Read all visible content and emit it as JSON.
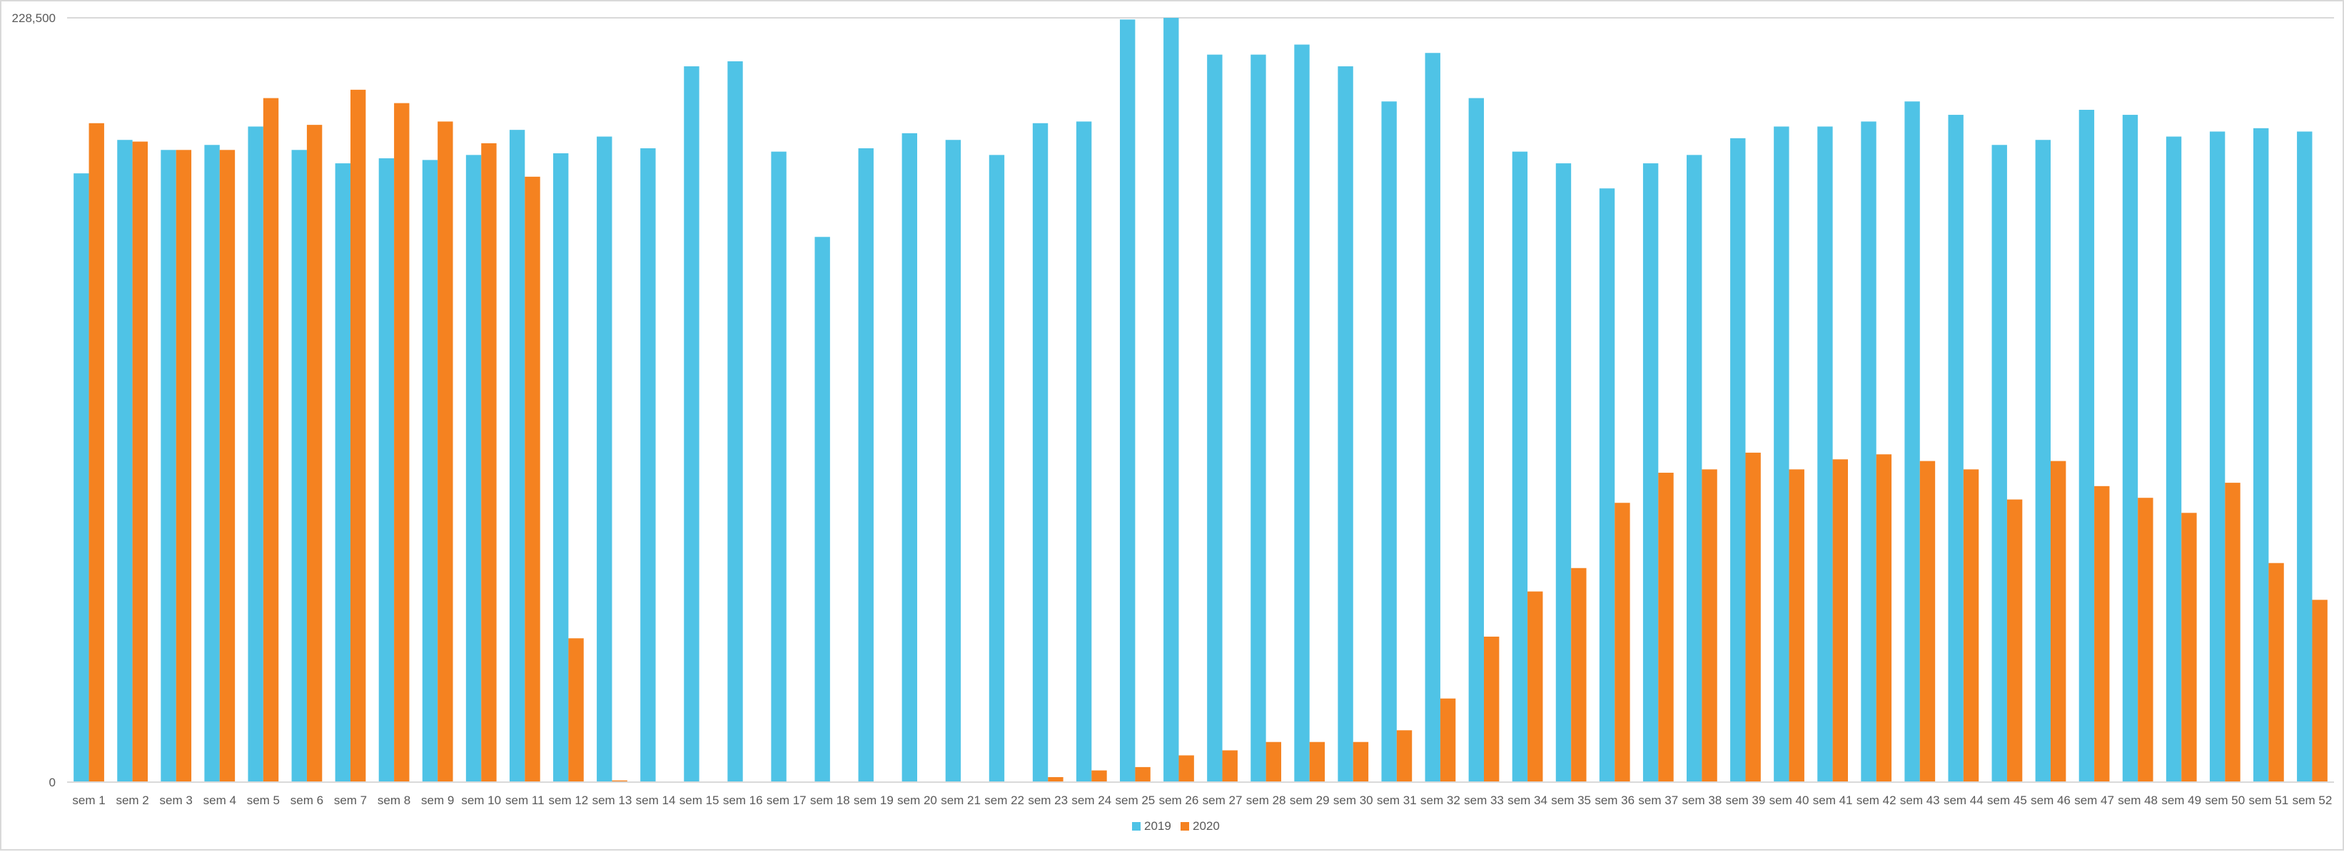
{
  "chart_data": {
    "type": "bar",
    "title": "",
    "xlabel": "",
    "ylabel": "",
    "ylim": [
      0,
      228500
    ],
    "y_tick_labels": [
      "0",
      "228,500"
    ],
    "grid": "horizontal top line only",
    "legend_position": "bottom",
    "categories": [
      "sem 1",
      "sem 2",
      "sem 3",
      "sem 4",
      "sem 5",
      "sem 6",
      "sem 7",
      "sem 8",
      "sem 9",
      "sem 10",
      "sem 11",
      "sem 12",
      "sem 13",
      "sem 14",
      "sem 15",
      "sem 16",
      "sem 17",
      "sem 18",
      "sem 19",
      "sem 20",
      "sem 21",
      "sem 22",
      "sem 23",
      "sem 24",
      "sem 25",
      "sem 26",
      "sem 27",
      "sem 28",
      "sem 29",
      "sem 30",
      "sem 31",
      "sem 32",
      "sem 33",
      "sem 34",
      "sem 35",
      "sem 36",
      "sem 37",
      "sem 38",
      "sem 39",
      "sem 40",
      "sem 41",
      "sem 42",
      "sem 43",
      "sem 44",
      "sem 45",
      "sem 46",
      "sem 47",
      "sem 48",
      "sem 49",
      "sem 50",
      "sem 51",
      "sem 52"
    ],
    "series": [
      {
        "name": "2019",
        "color": "#4fc3e6",
        "values": [
          182000,
          192000,
          189000,
          190500,
          196000,
          189000,
          185000,
          186500,
          186000,
          187500,
          195000,
          188000,
          193000,
          189500,
          214000,
          215500,
          188500,
          163000,
          189500,
          194000,
          192000,
          187500,
          197000,
          197500,
          228000,
          228500,
          217500,
          217500,
          220500,
          214000,
          203500,
          218000,
          204500,
          188500,
          185000,
          177500,
          185000,
          187500,
          192500,
          196000,
          196000,
          197500,
          203500,
          199500,
          190500,
          192000,
          201000,
          199500,
          193000,
          194500,
          195500,
          194500
        ]
      },
      {
        "name": "2020",
        "color": "#f58220",
        "values": [
          197000,
          191500,
          189000,
          189000,
          204500,
          196500,
          207000,
          203000,
          197500,
          191000,
          181000,
          43000,
          500,
          0,
          0,
          0,
          0,
          0,
          0,
          0,
          0,
          0,
          1500,
          3500,
          4500,
          8000,
          9500,
          12000,
          12000,
          12000,
          15500,
          25000,
          43500,
          57000,
          64000,
          83500,
          92500,
          93500,
          98500,
          93500,
          96500,
          98000,
          96000,
          93500,
          84500,
          96000,
          88500,
          85000,
          80500,
          89500,
          65500,
          54500
        ]
      }
    ]
  }
}
